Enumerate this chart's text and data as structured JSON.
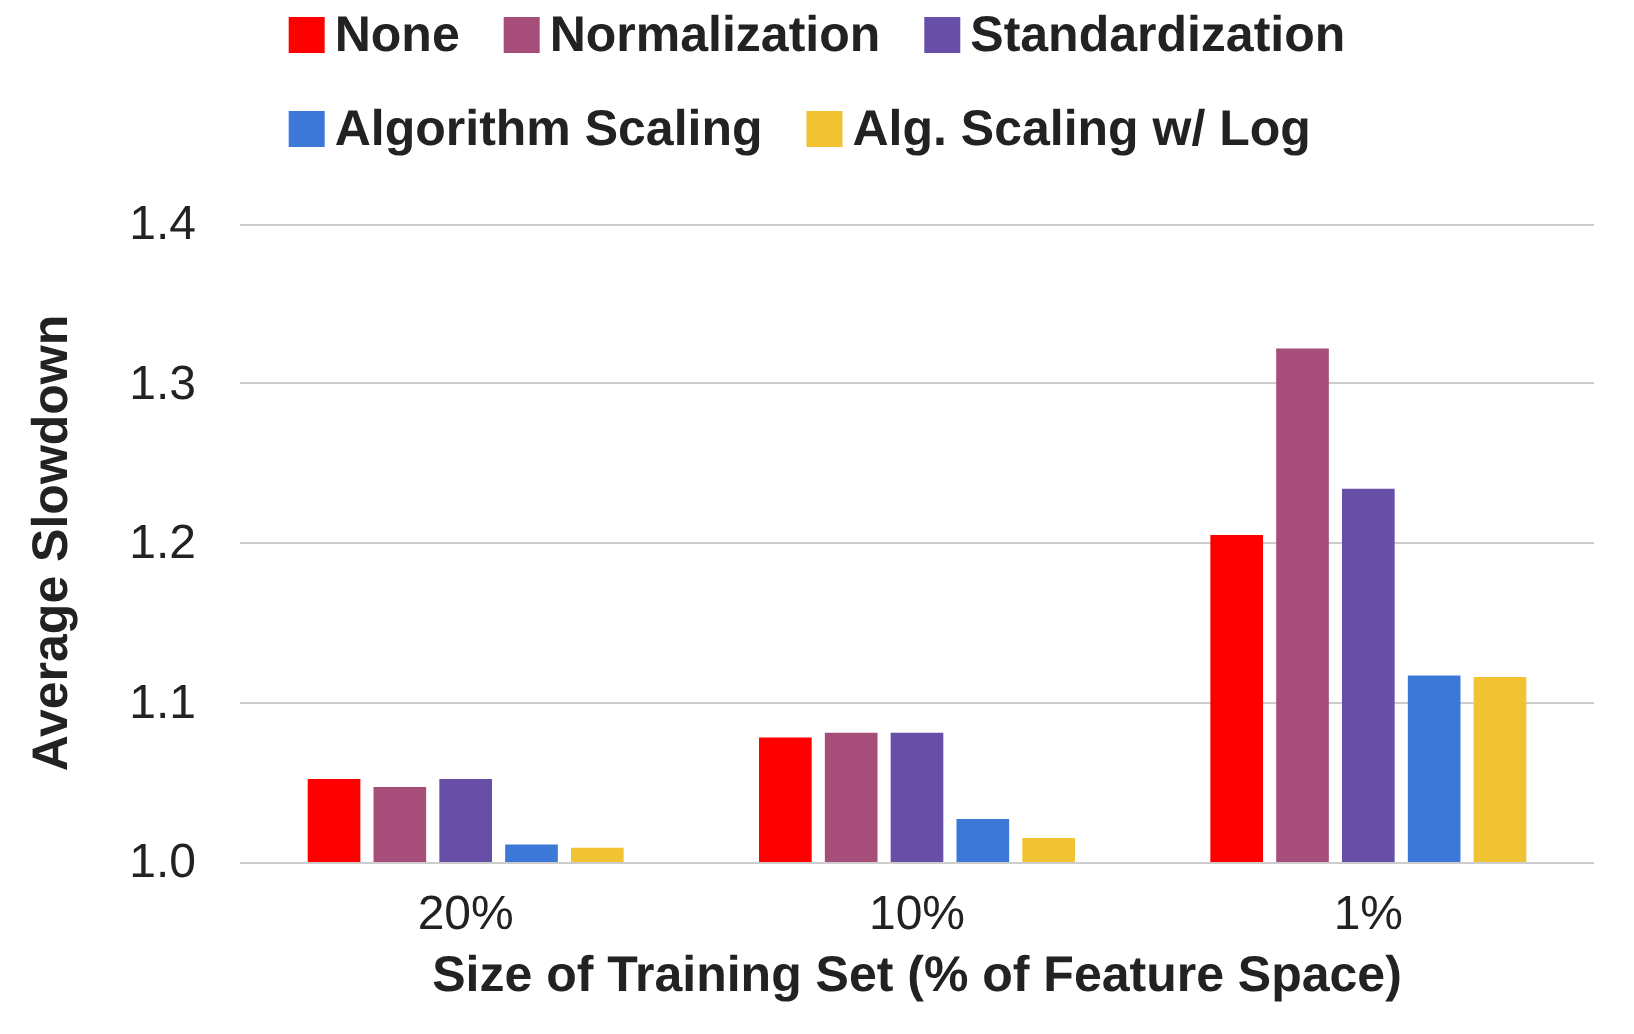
{
  "chart_data": {
    "type": "bar",
    "xlabel": "Size of Training Set (% of Feature Space)",
    "ylabel": "Average Slowdown",
    "categories": [
      "20%",
      "10%",
      "1%"
    ],
    "series": [
      {
        "name": "None",
        "color": "#ff0000",
        "values": [
          1.052,
          1.078,
          1.205
        ]
      },
      {
        "name": "Normalization",
        "color": "#a64d79",
        "values": [
          1.047,
          1.081,
          1.322
        ]
      },
      {
        "name": "Standardization",
        "color": "#674ea7",
        "values": [
          1.052,
          1.081,
          1.234
        ]
      },
      {
        "name": "Algorithm Scaling",
        "color": "#3c78d8",
        "values": [
          1.011,
          1.027,
          1.117
        ]
      },
      {
        "name": "Alg. Scaling w/ Log",
        "color": "#f1c232",
        "values": [
          1.009,
          1.015,
          1.116
        ]
      }
    ],
    "ylim": [
      1.0,
      1.4
    ],
    "yticks": [
      {
        "value": 1.0,
        "label": "1.0"
      },
      {
        "value": 1.1,
        "label": "1.1"
      },
      {
        "value": 1.2,
        "label": "1.2"
      },
      {
        "value": 1.3,
        "label": "1.3"
      },
      {
        "value": 1.4,
        "label": "1.4"
      }
    ],
    "grid": true,
    "legend": "top"
  }
}
